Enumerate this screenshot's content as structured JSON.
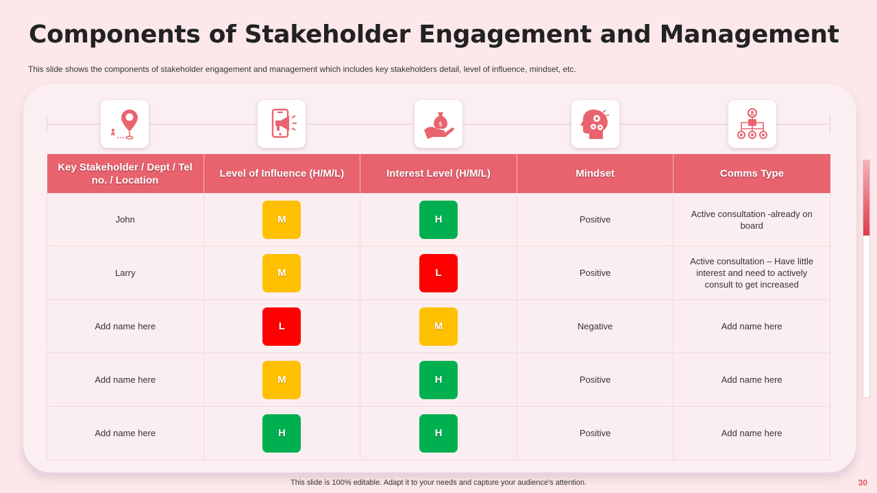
{
  "header": {
    "title": "Components of Stakeholder Engagement and Management",
    "subtitle": "This slide shows the components of stakeholder engagement and management which includes key stakeholders detail, level of influence, mindset, etc."
  },
  "icons": [
    "location-pin-icon",
    "mobile-megaphone-icon",
    "money-bag-hand-icon",
    "head-gears-icon",
    "network-hierarchy-icon"
  ],
  "table": {
    "headers": [
      "Key Stakeholder / Dept / Tel no. / Location",
      "Level of Influence (H/M/L)",
      "Interest  Level (H/M/L)",
      "Mindset",
      "Comms Type"
    ],
    "rows": [
      {
        "name": "John",
        "influence": "M",
        "interest": "H",
        "mindset": "Positive",
        "comms": "Active consultation -already on board"
      },
      {
        "name": "Larry",
        "influence": "M",
        "interest": "L",
        "mindset": "Positive",
        "comms": "Active consultation – Have little interest and need to actively consult to get increased"
      },
      {
        "name": "Add name here",
        "influence": "L",
        "interest": "M",
        "mindset": "Negative",
        "comms": "Add name here"
      },
      {
        "name": "Add name here",
        "influence": "M",
        "interest": "H",
        "mindset": "Positive",
        "comms": "Add name here"
      },
      {
        "name": "Add name here",
        "influence": "H",
        "interest": "H",
        "mindset": "Positive",
        "comms": "Add name here"
      }
    ]
  },
  "level_colors": {
    "H": "#00b050",
    "M": "#ffc000",
    "L": "#ff0000"
  },
  "footer": {
    "note": "This slide is 100% editable. Adapt it to your needs and capture your audience's attention.",
    "page": "30"
  }
}
